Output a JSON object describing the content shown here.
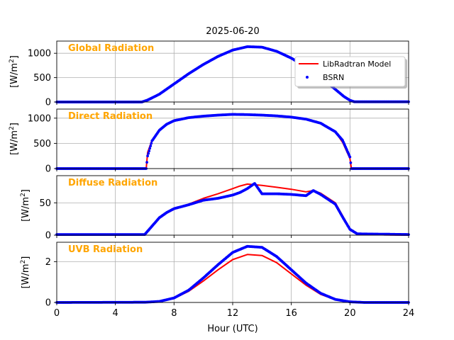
{
  "figure": {
    "title": "2025-06-20",
    "xlabel": "Hour (UTC)",
    "panel_title_color": "#FFA500"
  },
  "legend": {
    "model_label": "LibRadtran Model",
    "obs_label": "BSRN",
    "model_color": "#FF0000",
    "obs_color": "#0000FF",
    "placement": "upper-right of top panel"
  },
  "chart_data": [
    {
      "type": "line",
      "title": "Global Radiation",
      "ylabel": "[W/m2]",
      "ylim": [
        0,
        1250
      ],
      "yticks": [
        0,
        500,
        1000
      ],
      "xlim": [
        0,
        24
      ],
      "xticks": [
        0,
        4,
        8,
        12,
        16,
        20,
        24
      ],
      "grid": true,
      "x": [
        0,
        5.8,
        6.2,
        7,
        8,
        9,
        10,
        11,
        12,
        13,
        14,
        15,
        16,
        17,
        18,
        19,
        19.6,
        20,
        20.3,
        24
      ],
      "series": [
        {
          "name": "LibRadtran Model",
          "values": [
            0,
            0,
            30,
            170,
            370,
            580,
            770,
            930,
            1060,
            1130,
            1120,
            1040,
            900,
            720,
            510,
            260,
            110,
            40,
            0,
            0
          ]
        },
        {
          "name": "BSRN",
          "values": [
            0,
            0,
            40,
            160,
            370,
            580,
            770,
            935,
            1065,
            1135,
            1125,
            1040,
            900,
            720,
            505,
            260,
            110,
            35,
            5,
            5
          ]
        }
      ]
    },
    {
      "type": "line",
      "title": "Direct Radiation",
      "ylabel": "[W/m2]",
      "ylim": [
        0,
        1180
      ],
      "yticks": [
        0,
        500,
        1000
      ],
      "xlim": [
        0,
        24
      ],
      "xticks": [
        0,
        4,
        8,
        12,
        16,
        20,
        24
      ],
      "grid": true,
      "x": [
        0,
        6.1,
        6.2,
        6.5,
        7,
        7.5,
        8,
        9,
        10,
        11,
        12,
        13,
        14,
        15,
        16,
        17,
        18,
        19,
        19.5,
        20,
        20.1,
        24
      ],
      "series": [
        {
          "name": "LibRadtran Model",
          "values": [
            0,
            0,
            320,
            560,
            770,
            880,
            950,
            1010,
            1040,
            1060,
            1070,
            1070,
            1060,
            1045,
            1020,
            980,
            900,
            730,
            520,
            200,
            0,
            0
          ]
        },
        {
          "name": "BSRN",
          "values": [
            0,
            0,
            250,
            550,
            760,
            880,
            950,
            1010,
            1040,
            1060,
            1075,
            1070,
            1060,
            1045,
            1020,
            980,
            900,
            730,
            560,
            230,
            0,
            0
          ]
        }
      ]
    },
    {
      "type": "line",
      "title": "Diffuse Radiation",
      "ylabel": "[W/m2]",
      "ylim": [
        0,
        92
      ],
      "yticks": [
        0,
        50
      ],
      "xlim": [
        0,
        24
      ],
      "xticks": [
        0,
        4,
        8,
        12,
        16,
        20,
        24
      ],
      "grid": true,
      "x": [
        0,
        6,
        6.5,
        7,
        7.5,
        8,
        9,
        10,
        11,
        12,
        12.5,
        13,
        13.5,
        14,
        15,
        16,
        17,
        17.5,
        18,
        19,
        19.5,
        20,
        20.5,
        24
      ],
      "series": [
        {
          "name": "LibRadtran Model",
          "values": [
            0,
            0,
            13,
            26,
            34,
            40,
            48,
            57,
            64,
            72,
            76,
            79,
            78,
            77,
            74,
            71,
            67,
            69,
            65,
            50,
            30,
            10,
            1,
            0
          ]
        },
        {
          "name": "BSRN",
          "values": [
            1,
            1,
            14,
            27,
            35,
            41,
            47,
            54,
            57,
            62,
            66,
            72,
            80,
            64,
            64,
            63,
            61,
            69,
            63,
            48,
            28,
            9,
            2,
            1
          ]
        }
      ]
    },
    {
      "type": "line",
      "title": "UVB Radiation",
      "ylabel": "[W/m2]",
      "ylim": [
        0,
        2.95
      ],
      "yticks": [
        0,
        2
      ],
      "xlim": [
        0,
        24
      ],
      "xticks": [
        0,
        4,
        8,
        12,
        16,
        20,
        24
      ],
      "grid": true,
      "x": [
        0,
        6,
        7,
        8,
        9,
        10,
        11,
        12,
        13,
        14,
        15,
        16,
        17,
        18,
        19,
        20,
        21,
        24
      ],
      "series": [
        {
          "name": "LibRadtran Model",
          "values": [
            0,
            0.01,
            0.05,
            0.2,
            0.55,
            1.05,
            1.6,
            2.1,
            2.35,
            2.3,
            1.95,
            1.4,
            0.85,
            0.4,
            0.14,
            0.03,
            0,
            0
          ]
        },
        {
          "name": "BSRN",
          "values": [
            0,
            0.01,
            0.05,
            0.22,
            0.6,
            1.2,
            1.85,
            2.45,
            2.75,
            2.7,
            2.25,
            1.6,
            0.95,
            0.45,
            0.15,
            0.03,
            0,
            0
          ]
        }
      ]
    }
  ]
}
